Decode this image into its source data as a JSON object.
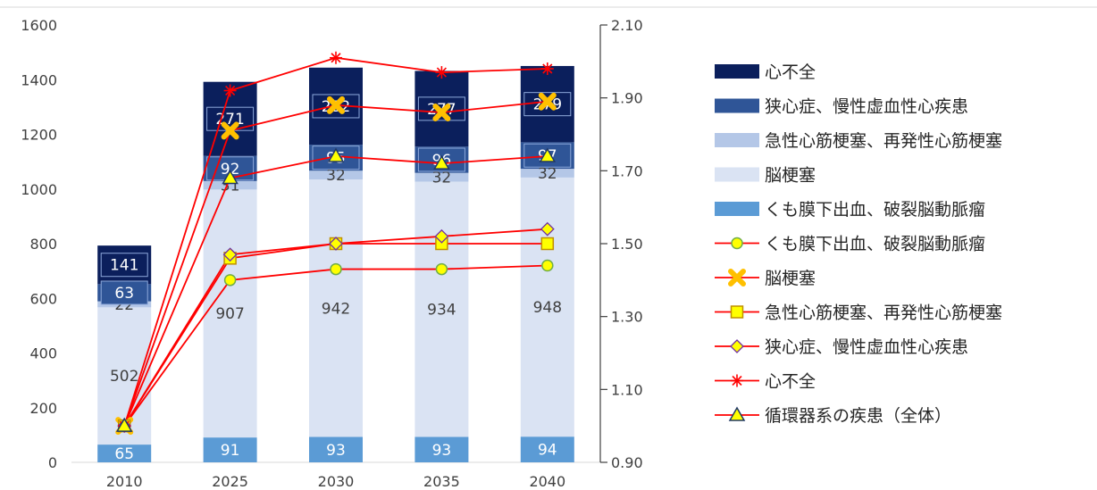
{
  "chart_data": {
    "type": "bar",
    "categories": [
      "2010",
      "2025",
      "2030",
      "2035",
      "2040"
    ],
    "stacked": true,
    "y_left": {
      "ylim": [
        0,
        1600
      ],
      "ticks": [
        "0",
        "200",
        "400",
        "600",
        "800",
        "1000",
        "1200",
        "1400",
        "1600"
      ]
    },
    "y_right": {
      "ylim": [
        0.9,
        2.1
      ],
      "ticks": [
        "0.90",
        "1.10",
        "1.30",
        "1.50",
        "1.70",
        "1.90",
        "2.10"
      ]
    },
    "bar_series": [
      {
        "name": "くも膜下出血、破裂脳動脈瘤",
        "color": "#5b9bd5",
        "label_color": "#ffffff",
        "values": [
          65,
          91,
          93,
          93,
          94
        ]
      },
      {
        "name": "脳梗塞",
        "color": "#dae3f3",
        "label_color": "#404040",
        "values": [
          502,
          907,
          942,
          934,
          948
        ]
      },
      {
        "name": "急性心筋梗塞、再発性心筋梗塞",
        "color": "#b4c7e7",
        "label_color": "#404040",
        "values": [
          22,
          31,
          32,
          32,
          32
        ]
      },
      {
        "name": "狭心症、慢性虚血性心疾患",
        "color": "#2f5597",
        "label_color": "#ffffff",
        "values": [
          63,
          92,
          95,
          96,
          97
        ]
      },
      {
        "name": "心不全",
        "color": "#0b1f5c",
        "label_color": "#ffffff",
        "values": [
          141,
          271,
          282,
          277,
          279
        ]
      }
    ],
    "line_series": [
      {
        "name": "くも膜下出血、破裂脳動脈瘤",
        "marker": "circle",
        "values": [
          1.0,
          1.4,
          1.43,
          1.43,
          1.44
        ]
      },
      {
        "name": "脳梗塞",
        "marker": "x-thick",
        "values": [
          1.0,
          1.81,
          1.88,
          1.86,
          1.89
        ]
      },
      {
        "name": "急性心筋梗塞、再発性心筋梗塞",
        "marker": "square",
        "values": [
          1.0,
          1.46,
          1.5,
          1.5,
          1.5
        ]
      },
      {
        "name": "狭心症、慢性虚血性心疾患",
        "marker": "diamond",
        "values": [
          1.0,
          1.47,
          1.5,
          1.52,
          1.54
        ]
      },
      {
        "name": "心不全",
        "marker": "asterisk",
        "values": [
          1.0,
          1.92,
          2.01,
          1.97,
          1.98
        ]
      },
      {
        "name": "循環器系の疾患（全体）",
        "marker": "triangle",
        "values": [
          1.0,
          1.68,
          1.74,
          1.72,
          1.74
        ]
      }
    ],
    "legend_position": "right",
    "grid": false
  }
}
